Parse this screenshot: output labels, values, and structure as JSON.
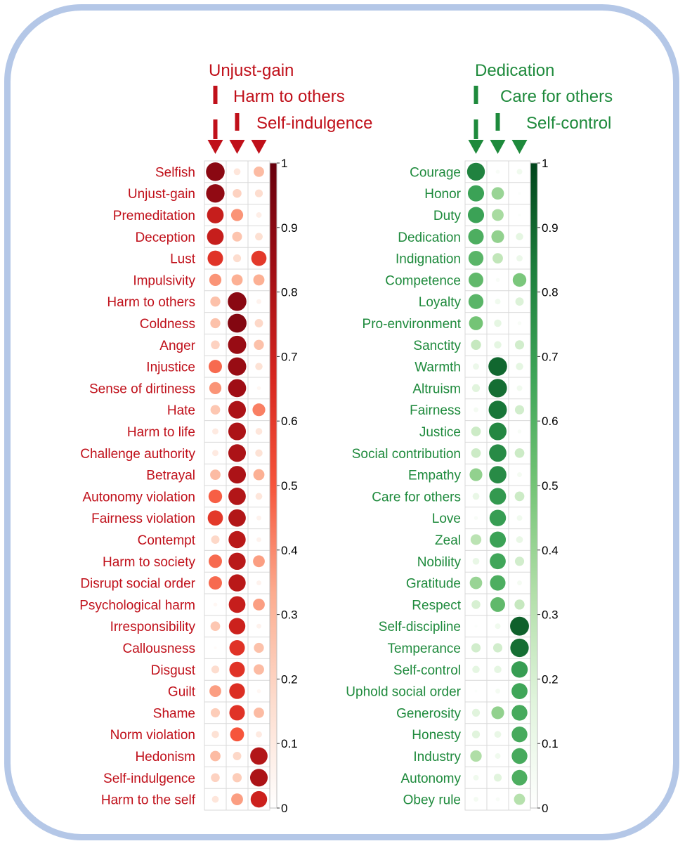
{
  "colors": {
    "red_text": "#c0101a",
    "green_text": "#1e8a3c",
    "grid": "#d9d9d9",
    "red_scale": [
      "#ffffff",
      "#fddccd",
      "#fcac8f",
      "#f6553b",
      "#d7261f",
      "#a10e15",
      "#67000d"
    ],
    "green_scale": [
      "#ffffff",
      "#e0f4dc",
      "#b2dfa9",
      "#74c476",
      "#3ea558",
      "#1d7f3d",
      "#00441b"
    ]
  },
  "chart_data": [
    {
      "type": "heatmap",
      "style": "circle-matrix",
      "columns": [
        "Unjust-gain",
        "Harm to others",
        "Self-indulgence"
      ],
      "colorbar": {
        "range": [
          0,
          1
        ],
        "ticks": [
          "0",
          "0.1",
          "0.2",
          "0.3",
          "0.4",
          "0.5",
          "0.6",
          "0.7",
          "0.8",
          "0.9",
          "1"
        ]
      },
      "rows": [
        {
          "label": "Selfish",
          "values": [
            0.9,
            0.12,
            0.28
          ]
        },
        {
          "label": "Unjust-gain",
          "values": [
            0.88,
            0.2,
            0.16
          ]
        },
        {
          "label": "Premeditation",
          "values": [
            0.72,
            0.38,
            0.08
          ]
        },
        {
          "label": "Deception",
          "values": [
            0.72,
            0.25,
            0.15
          ]
        },
        {
          "label": "Lust",
          "values": [
            0.62,
            0.16,
            0.6
          ]
        },
        {
          "label": "Impulsivity",
          "values": [
            0.38,
            0.32,
            0.32
          ]
        },
        {
          "label": "Harm to others",
          "values": [
            0.26,
            0.9,
            0.06
          ]
        },
        {
          "label": "Coldness",
          "values": [
            0.26,
            0.92,
            0.18
          ]
        },
        {
          "label": "Anger",
          "values": [
            0.2,
            0.86,
            0.26
          ]
        },
        {
          "label": "Injustice",
          "values": [
            0.46,
            0.86,
            0.14
          ]
        },
        {
          "label": "Sense of dirtiness",
          "values": [
            0.38,
            0.84,
            0.04
          ]
        },
        {
          "label": "Hate",
          "values": [
            0.24,
            0.8,
            0.42
          ]
        },
        {
          "label": "Harm to life",
          "values": [
            0.1,
            0.8,
            0.12
          ]
        },
        {
          "label": "Challenge authority",
          "values": [
            0.1,
            0.8,
            0.14
          ]
        },
        {
          "label": "Betrayal",
          "values": [
            0.28,
            0.8,
            0.32
          ]
        },
        {
          "label": "Autonomy violation",
          "values": [
            0.48,
            0.78,
            0.12
          ]
        },
        {
          "label": "Fairness violation",
          "values": [
            0.6,
            0.78,
            0.06
          ]
        },
        {
          "label": "Contempt",
          "values": [
            0.18,
            0.76,
            0.06
          ]
        },
        {
          "label": "Harm to society",
          "values": [
            0.46,
            0.76,
            0.36
          ]
        },
        {
          "label": "Disrupt social order",
          "values": [
            0.46,
            0.76,
            0.06
          ]
        },
        {
          "label": "Psychological harm",
          "values": [
            0.04,
            0.72,
            0.36
          ]
        },
        {
          "label": "Irresponsibility",
          "values": [
            0.24,
            0.7,
            0.06
          ]
        },
        {
          "label": "Callousness",
          "values": [
            0.02,
            0.62,
            0.26
          ]
        },
        {
          "label": "Disgust",
          "values": [
            0.16,
            0.62,
            0.28
          ]
        },
        {
          "label": "Guilt",
          "values": [
            0.36,
            0.64,
            0.04
          ]
        },
        {
          "label": "Shame",
          "values": [
            0.22,
            0.62,
            0.28
          ]
        },
        {
          "label": "Norm violation",
          "values": [
            0.14,
            0.5,
            0.1
          ]
        },
        {
          "label": "Hedonism",
          "values": [
            0.28,
            0.18,
            0.78
          ]
        },
        {
          "label": "Self-indulgence",
          "values": [
            0.2,
            0.22,
            0.8
          ]
        },
        {
          "label": "Harm to the self",
          "values": [
            0.12,
            0.36,
            0.7
          ]
        }
      ]
    },
    {
      "type": "heatmap",
      "style": "circle-matrix",
      "columns": [
        "Dedication",
        "Care for others",
        "Self-control"
      ],
      "colorbar": {
        "range": [
          0,
          1
        ],
        "ticks": [
          "0",
          "0.1",
          "0.2",
          "0.3",
          "0.4",
          "0.5",
          "0.6",
          "0.7",
          "0.8",
          "0.9",
          "1"
        ]
      },
      "rows": [
        {
          "label": "Courage",
          "values": [
            0.82,
            0.04,
            0.08
          ]
        },
        {
          "label": "Honor",
          "values": [
            0.68,
            0.4,
            0.02
          ]
        },
        {
          "label": "Duty",
          "values": [
            0.68,
            0.36,
            0.02
          ]
        },
        {
          "label": "Dedication",
          "values": [
            0.62,
            0.42,
            0.14
          ]
        },
        {
          "label": "Indignation",
          "values": [
            0.58,
            0.28,
            0.1
          ]
        },
        {
          "label": "Competence",
          "values": [
            0.56,
            0.04,
            0.48
          ]
        },
        {
          "label": "Loyalty",
          "values": [
            0.58,
            0.08,
            0.18
          ]
        },
        {
          "label": "Pro-environment",
          "values": [
            0.5,
            0.14,
            0.04
          ]
        },
        {
          "label": "Sanctity",
          "values": [
            0.26,
            0.14,
            0.22
          ]
        },
        {
          "label": "Warmth",
          "values": [
            0.1,
            0.9,
            0.14
          ]
        },
        {
          "label": "Altruism",
          "values": [
            0.16,
            0.88,
            0.08
          ]
        },
        {
          "label": "Fairness",
          "values": [
            0.06,
            0.86,
            0.22
          ]
        },
        {
          "label": "Justice",
          "values": [
            0.24,
            0.8,
            0.04
          ]
        },
        {
          "label": "Social contribution",
          "values": [
            0.24,
            0.78,
            0.24
          ]
        },
        {
          "label": "Empathy",
          "values": [
            0.42,
            0.78,
            0.06
          ]
        },
        {
          "label": "Care for others",
          "values": [
            0.12,
            0.72,
            0.24
          ]
        },
        {
          "label": "Love",
          "values": [
            0.04,
            0.7,
            0.08
          ]
        },
        {
          "label": "Zeal",
          "values": [
            0.3,
            0.68,
            0.12
          ]
        },
        {
          "label": "Nobility",
          "values": [
            0.12,
            0.66,
            0.22
          ]
        },
        {
          "label": "Gratitude",
          "values": [
            0.4,
            0.62,
            0.06
          ]
        },
        {
          "label": "Respect",
          "values": [
            0.2,
            0.56,
            0.26
          ]
        },
        {
          "label": "Self-discipline",
          "values": [
            0.02,
            0.08,
            0.92
          ]
        },
        {
          "label": "Temperance",
          "values": [
            0.22,
            0.22,
            0.88
          ]
        },
        {
          "label": "Self-control",
          "values": [
            0.14,
            0.14,
            0.7
          ]
        },
        {
          "label": "Uphold social order",
          "values": [
            0.02,
            0.06,
            0.66
          ]
        },
        {
          "label": "Generosity",
          "values": [
            0.16,
            0.42,
            0.64
          ]
        },
        {
          "label": "Honesty",
          "values": [
            0.16,
            0.12,
            0.64
          ]
        },
        {
          "label": "Industry",
          "values": [
            0.34,
            0.08,
            0.64
          ]
        },
        {
          "label": "Autonomy",
          "values": [
            0.08,
            0.16,
            0.62
          ]
        },
        {
          "label": "Obey rule",
          "values": [
            0.06,
            0.04,
            0.32
          ]
        }
      ]
    }
  ]
}
